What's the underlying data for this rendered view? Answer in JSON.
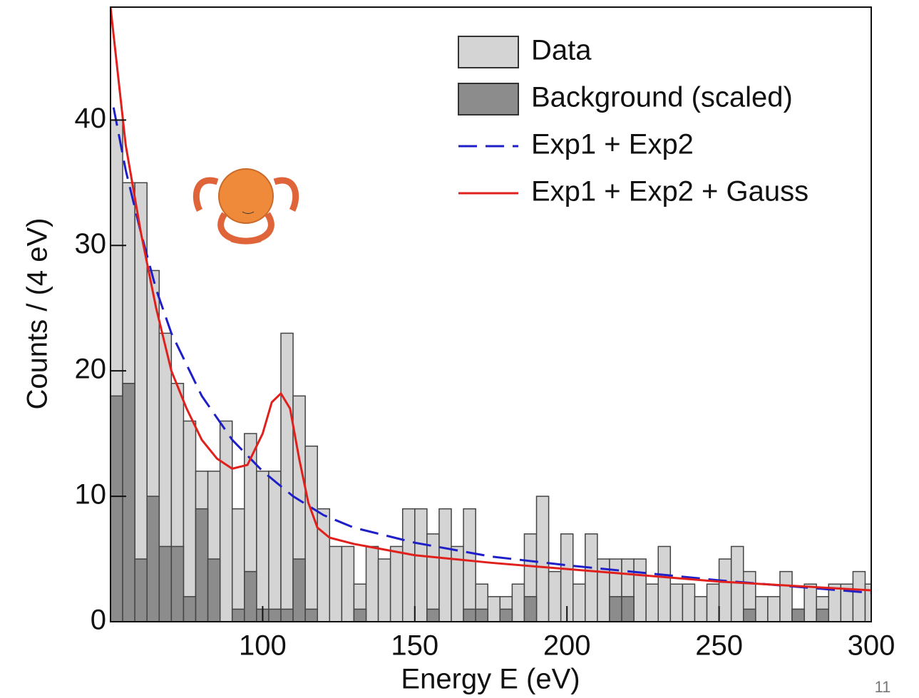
{
  "chart_data": {
    "type": "histogram",
    "x_label": "Energy E (eV)",
    "y_label": "Counts / (4 eV)",
    "xlim": [
      50,
      300
    ],
    "ylim": [
      0,
      49
    ],
    "xticks": [
      100,
      150,
      200,
      250,
      300
    ],
    "yticks": [
      0,
      10,
      20,
      30,
      40
    ],
    "bins": [
      50,
      54,
      58,
      62,
      66,
      70,
      74,
      78,
      82,
      86,
      90,
      94,
      98,
      102,
      106,
      110,
      114,
      118,
      122,
      126,
      130,
      134,
      138,
      142,
      146,
      150,
      154,
      158,
      162,
      166,
      170,
      174,
      178,
      182,
      186,
      190,
      194,
      198,
      202,
      206,
      210,
      214,
      218,
      222,
      226,
      230,
      234,
      238,
      242,
      246,
      250,
      254,
      258,
      262,
      266,
      270,
      274,
      278,
      282,
      286,
      290,
      294,
      298,
      300
    ],
    "series": [
      {
        "name": "Data",
        "color": "#d4d4d4",
        "values": [
          40,
          35,
          35,
          28,
          23,
          19,
          16,
          12,
          12,
          16,
          9,
          15,
          12,
          12,
          23,
          18,
          14,
          9,
          6,
          6,
          3,
          6,
          5,
          6,
          9,
          9,
          7,
          9,
          6,
          9,
          3,
          2,
          2,
          3,
          7,
          10,
          4,
          7,
          3,
          7,
          5,
          5,
          5,
          5,
          3,
          6,
          3,
          3,
          2,
          3,
          5,
          6,
          4,
          2,
          2,
          4,
          1,
          3,
          2,
          3,
          3,
          4,
          3
        ]
      },
      {
        "name": "Background (scaled)",
        "color": "#8c8c8c",
        "values": [
          18,
          19,
          5,
          10,
          6,
          6,
          2,
          9,
          5,
          0,
          1,
          4,
          1,
          1,
          1,
          5,
          1,
          0,
          0,
          0,
          1,
          0,
          0,
          0,
          0,
          0,
          1,
          0,
          0,
          1,
          1,
          0,
          1,
          0,
          2,
          0,
          0,
          0,
          0,
          0,
          0,
          2,
          2,
          0,
          0,
          0,
          0,
          0,
          0,
          0,
          0,
          0,
          1,
          0,
          0,
          0,
          1,
          0,
          1,
          0,
          0,
          0,
          0
        ]
      }
    ],
    "lines": [
      {
        "name": "Exp1 + Exp2",
        "color": "#1f1fc8",
        "dashed": true,
        "x": [
          51,
          55,
          60,
          65,
          70,
          75,
          80,
          90,
          100,
          110,
          120,
          130,
          150,
          175,
          200,
          250,
          300
        ],
        "y": [
          41,
          36,
          31,
          26.5,
          23,
          20.5,
          18,
          14.5,
          12,
          10,
          8.5,
          7.5,
          6.3,
          5.2,
          4.5,
          3.3,
          2.3
        ]
      },
      {
        "name": "Exp1 + Exp2 + Gauss",
        "color": "#e0201c",
        "dashed": false,
        "x": [
          50,
          55,
          60,
          65,
          70,
          75,
          80,
          85,
          90,
          95,
          100,
          103,
          106,
          109,
          112,
          115,
          118,
          122,
          130,
          150,
          175,
          200,
          250,
          300
        ],
        "y": [
          49,
          38,
          31,
          25,
          20,
          17,
          14.5,
          13,
          12.2,
          12.5,
          15,
          17.5,
          18.2,
          17,
          13,
          9.5,
          7.5,
          6.7,
          6.2,
          5.3,
          4.7,
          4.2,
          3.2,
          2.5
        ]
      }
    ]
  },
  "page_number": "11"
}
